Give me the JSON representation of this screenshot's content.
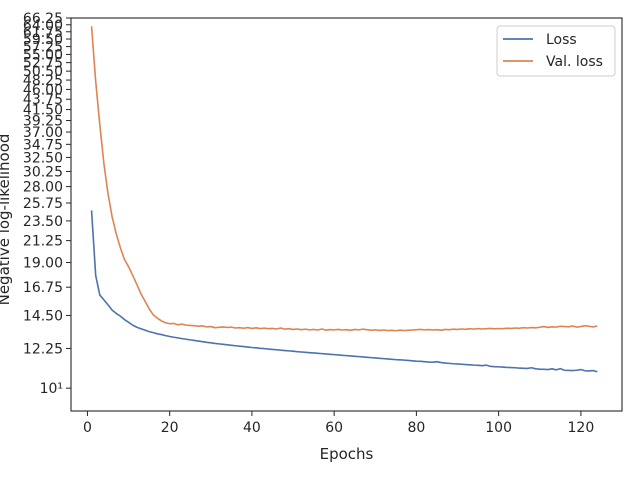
{
  "chart_data": {
    "type": "line",
    "title": "",
    "xlabel": "Epochs",
    "ylabel": "Negative log-likelihood",
    "xlim": [
      -4,
      130
    ],
    "ylim": [
      8.9,
      66.25
    ],
    "yscale": "log",
    "grid": false,
    "legend": "top-right",
    "x_ticks": [
      0,
      20,
      40,
      60,
      80,
      100,
      120
    ],
    "x_tick_labels": [
      "0",
      "20",
      "40",
      "60",
      "80",
      "100",
      "120"
    ],
    "y_ticks": [
      10,
      12.25,
      14.5,
      16.75,
      19.0,
      21.25,
      23.5,
      25.75,
      28.0,
      30.25,
      32.5,
      34.75,
      37.0,
      39.25,
      41.5,
      43.75,
      46.0,
      48.25,
      50.5,
      52.75,
      55.0,
      57.25,
      59.5,
      61.75,
      64.0,
      66.25
    ],
    "y_tick_labels": [
      "10¹",
      "12.25",
      "14.50",
      "16.75",
      "19.00",
      "21.25",
      "23.50",
      "25.75",
      "28.00",
      "30.25",
      "32.50",
      "34.75",
      "37.00",
      "39.25",
      "41.50",
      "43.75",
      "46.00",
      "48.25",
      "50.50",
      "52.75",
      "55.00",
      "57.25",
      "59.50",
      "61.75",
      "64.00",
      "66.25"
    ],
    "series": [
      {
        "name": "Loss",
        "color": "#4c72b0",
        "x": [
          1,
          2,
          3,
          4,
          5,
          6,
          7,
          8,
          9,
          10,
          11,
          12,
          13,
          14,
          15,
          16,
          17,
          18,
          19,
          20,
          21,
          22,
          23,
          24,
          25,
          26,
          27,
          28,
          29,
          30,
          31,
          32,
          33,
          34,
          35,
          36,
          37,
          38,
          39,
          40,
          41,
          42,
          43,
          44,
          45,
          46,
          47,
          48,
          49,
          50,
          51,
          52,
          53,
          54,
          55,
          56,
          57,
          58,
          59,
          60,
          61,
          62,
          63,
          64,
          65,
          66,
          67,
          68,
          69,
          70,
          71,
          72,
          73,
          74,
          75,
          76,
          77,
          78,
          79,
          80,
          81,
          82,
          83,
          84,
          85,
          86,
          87,
          88,
          89,
          90,
          91,
          92,
          93,
          94,
          95,
          96,
          97,
          98,
          99,
          100,
          101,
          102,
          103,
          104,
          105,
          106,
          107,
          108,
          109,
          110,
          111,
          112,
          113,
          114,
          115,
          116,
          117,
          118,
          119,
          120,
          121,
          122,
          123,
          124
        ],
        "values": [
          24.8,
          17.8,
          16.1,
          15.7,
          15.3,
          14.9,
          14.65,
          14.45,
          14.2,
          14.0,
          13.8,
          13.65,
          13.55,
          13.45,
          13.35,
          13.28,
          13.2,
          13.15,
          13.08,
          13.02,
          12.97,
          12.93,
          12.88,
          12.84,
          12.8,
          12.76,
          12.72,
          12.68,
          12.64,
          12.61,
          12.57,
          12.54,
          12.51,
          12.48,
          12.45,
          12.42,
          12.39,
          12.37,
          12.34,
          12.31,
          12.29,
          12.26,
          12.24,
          12.21,
          12.19,
          12.17,
          12.14,
          12.12,
          12.1,
          12.08,
          12.05,
          12.03,
          12.01,
          11.99,
          11.97,
          11.95,
          11.93,
          11.91,
          11.89,
          11.87,
          11.85,
          11.83,
          11.81,
          11.79,
          11.77,
          11.75,
          11.73,
          11.71,
          11.69,
          11.67,
          11.65,
          11.63,
          11.61,
          11.59,
          11.57,
          11.56,
          11.54,
          11.52,
          11.5,
          11.48,
          11.47,
          11.45,
          11.43,
          11.42,
          11.45,
          11.4,
          11.37,
          11.35,
          11.33,
          11.32,
          11.3,
          11.28,
          11.27,
          11.25,
          11.24,
          11.22,
          11.25,
          11.18,
          11.16,
          11.15,
          11.14,
          11.12,
          11.11,
          11.1,
          11.08,
          11.07,
          11.06,
          11.1,
          11.04,
          11.02,
          11.01,
          11.0,
          11.04,
          10.98,
          11.05,
          10.96,
          10.95,
          10.94,
          10.96,
          11.0,
          10.93,
          10.92,
          10.94,
          10.88
        ]
      },
      {
        "name": "Val. loss",
        "color": "#dd8452",
        "x": [
          1,
          2,
          3,
          4,
          5,
          6,
          7,
          8,
          9,
          10,
          11,
          12,
          13,
          14,
          15,
          16,
          17,
          18,
          19,
          20,
          21,
          22,
          23,
          24,
          25,
          26,
          27,
          28,
          29,
          30,
          31,
          32,
          33,
          34,
          35,
          36,
          37,
          38,
          39,
          40,
          41,
          42,
          43,
          44,
          45,
          46,
          47,
          48,
          49,
          50,
          51,
          52,
          53,
          54,
          55,
          56,
          57,
          58,
          59,
          60,
          61,
          62,
          63,
          64,
          65,
          66,
          67,
          68,
          69,
          70,
          71,
          72,
          73,
          74,
          75,
          76,
          77,
          78,
          79,
          80,
          81,
          82,
          83,
          84,
          85,
          86,
          87,
          88,
          89,
          90,
          91,
          92,
          93,
          94,
          95,
          96,
          97,
          98,
          99,
          100,
          101,
          102,
          103,
          104,
          105,
          106,
          107,
          108,
          109,
          110,
          111,
          112,
          113,
          114,
          115,
          116,
          117,
          118,
          119,
          120,
          121,
          122,
          123,
          124
        ],
        "values": [
          63.5,
          48.0,
          38.5,
          31.5,
          27.0,
          24.0,
          22.0,
          20.5,
          19.3,
          18.6,
          17.8,
          17.0,
          16.2,
          15.6,
          15.0,
          14.55,
          14.3,
          14.1,
          13.97,
          13.9,
          13.92,
          13.82,
          13.87,
          13.8,
          13.78,
          13.76,
          13.72,
          13.75,
          13.68,
          13.7,
          13.62,
          13.65,
          13.67,
          13.64,
          13.66,
          13.6,
          13.62,
          13.58,
          13.63,
          13.57,
          13.61,
          13.56,
          13.59,
          13.55,
          13.57,
          13.53,
          13.6,
          13.52,
          13.55,
          13.5,
          13.53,
          13.48,
          13.52,
          13.47,
          13.5,
          13.46,
          13.53,
          13.45,
          13.49,
          13.47,
          13.5,
          13.46,
          13.48,
          13.44,
          13.5,
          13.47,
          13.52,
          13.48,
          13.45,
          13.47,
          13.43,
          13.46,
          13.42,
          13.44,
          13.41,
          13.45,
          13.42,
          13.44,
          13.46,
          13.48,
          13.5,
          13.47,
          13.49,
          13.46,
          13.48,
          13.45,
          13.5,
          13.48,
          13.52,
          13.5,
          13.53,
          13.51,
          13.55,
          13.52,
          13.56,
          13.53,
          13.55,
          13.57,
          13.54,
          13.56,
          13.55,
          13.58,
          13.57,
          13.6,
          13.58,
          13.62,
          13.6,
          13.63,
          13.61,
          13.65,
          13.7,
          13.64,
          13.68,
          13.66,
          13.72,
          13.7,
          13.68,
          13.74,
          13.66,
          13.7,
          13.76,
          13.72,
          13.67,
          13.75
        ]
      }
    ]
  }
}
